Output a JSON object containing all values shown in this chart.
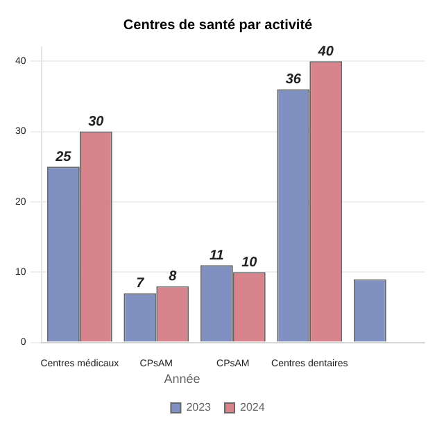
{
  "chart_data": {
    "type": "bar",
    "title": "Centres de santé par activité",
    "categories": [
      "Centres médicaux",
      "CPsAM",
      "CPsAM",
      "Centres dentaires",
      null
    ],
    "series": [
      {
        "name": "2023",
        "color": "#8090c0",
        "values": [
          25,
          7,
          11,
          36,
          9
        ],
        "value_labels": [
          "25",
          "7",
          "11",
          "36",
          null
        ]
      },
      {
        "name": "2024",
        "color": "#d8848c",
        "values": [
          30,
          8,
          10,
          40,
          null
        ],
        "value_labels": [
          "30",
          "8",
          "10",
          "40",
          null
        ]
      }
    ],
    "ylim": [
      0,
      42
    ],
    "yticks": [
      0,
      10,
      20,
      30,
      40
    ],
    "grid": "y",
    "legend": "bottom",
    "legend_title": "Année"
  }
}
